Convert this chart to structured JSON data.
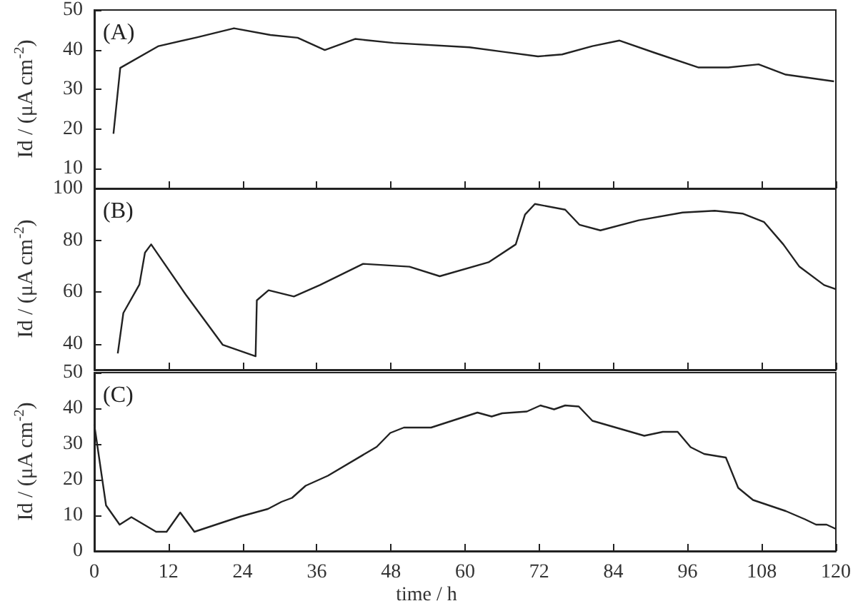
{
  "chart_data": [
    {
      "type": "line",
      "ylabel": "Id / (μA cm$^{-2}$)",
      "annotations": [
        "(A)"
      ],
      "xlim": [
        0,
        120
      ],
      "xticks": [
        0,
        12,
        24,
        36,
        48,
        60,
        72,
        84,
        96,
        108,
        120
      ],
      "ylim": [
        5,
        50
      ],
      "yticks": [
        10,
        20,
        30,
        40,
        50
      ],
      "tick_labels": "y",
      "grid": false,
      "marker": "none",
      "line_style": "solid",
      "series": [
        {
          "color": "#222222",
          "x": [
            3.1,
            4.2,
            10.4,
            16.6,
            22.6,
            28.5,
            32.9,
            37.3,
            42.2,
            48.4,
            60.7,
            66,
            71.8,
            75.7,
            80.6,
            85,
            90.7,
            97.8,
            102.6,
            107.5,
            111.9,
            119.7
          ],
          "values": [
            18.8,
            35.4,
            40.9,
            43.1,
            45.4,
            43.7,
            43,
            39.9,
            42.7,
            41.7,
            40.6,
            39.5,
            38.3,
            38.8,
            40.9,
            42.3,
            39.2,
            35.5,
            35.5,
            36.3,
            33.7,
            32
          ]
        }
      ]
    },
    {
      "type": "line",
      "ylabel": "Id / (μA cm$^{-2}$)",
      "annotations": [
        "(B)"
      ],
      "xlim": [
        0,
        120
      ],
      "xticks": [
        0,
        12,
        24,
        36,
        48,
        60,
        72,
        84,
        96,
        108,
        120
      ],
      "ylim": [
        30,
        100
      ],
      "yticks": [
        40,
        60,
        80,
        100
      ],
      "tick_labels": "y",
      "grid": false,
      "marker": "none",
      "line_style": "solid",
      "series": [
        {
          "color": "#222222",
          "x": [
            3.8,
            4.7,
            7.3,
            8.2,
            9.2,
            14.8,
            20.8,
            26.1,
            26.3,
            28.2,
            32.3,
            36.5,
            43.5,
            51,
            55.9,
            63.8,
            68.2,
            69.7,
            71.3,
            76.2,
            78.5,
            81.9,
            88.1,
            95.2,
            100.4,
            104.9,
            108.4,
            111.5,
            114.1,
            118.1,
            120
          ],
          "values": [
            36.3,
            51.9,
            62.9,
            75.2,
            78.4,
            59,
            39.6,
            35.2,
            56.8,
            60.7,
            58.3,
            62.7,
            70.9,
            69.8,
            66.1,
            71.5,
            78.4,
            89.9,
            94,
            91.8,
            86,
            83.8,
            87.7,
            90.7,
            91.4,
            90.3,
            87,
            78.4,
            69.8,
            62.7,
            61.1
          ]
        }
      ]
    },
    {
      "type": "line",
      "ylabel": "Id / (μA cm$^{-2}$)",
      "xlabel": "time / h",
      "annotations": [
        "(C)"
      ],
      "xlim": [
        0,
        120
      ],
      "xticks": [
        0,
        12,
        24,
        36,
        48,
        60,
        72,
        84,
        96,
        108,
        120
      ],
      "ylim": [
        0,
        50
      ],
      "yticks": [
        0,
        10,
        20,
        30,
        40,
        50
      ],
      "grid": false,
      "marker": "none",
      "line_style": "solid",
      "series": [
        {
          "color": "#222222",
          "x": [
            0,
            1.9,
            4.1,
            6,
            10,
            11.7,
            13.9,
            16.2,
            23.7,
            28.1,
            30.3,
            32,
            34.2,
            37.8,
            45.7,
            47.9,
            50.1,
            54.5,
            62,
            64.3,
            66,
            70,
            72.2,
            74.4,
            76.2,
            78.4,
            80.6,
            89,
            92,
            94.4,
            96.5,
            98.7,
            102.2,
            104.2,
            106.6,
            111.9,
            115,
            116.8,
            118.5,
            120
          ],
          "values": [
            35.4,
            12.8,
            7.4,
            9.5,
            5.4,
            5.4,
            10.8,
            5.4,
            9.7,
            11.8,
            13.8,
            14.9,
            18.3,
            21.1,
            29.2,
            33.1,
            34.6,
            34.6,
            38.8,
            37.7,
            38.6,
            39.1,
            40.8,
            39.7,
            40.8,
            40.5,
            36.5,
            32.3,
            33.4,
            33.4,
            29.1,
            27.2,
            26.2,
            17.7,
            14.3,
            11.2,
            8.9,
            7.4,
            7.4,
            6.2
          ]
        }
      ]
    }
  ]
}
